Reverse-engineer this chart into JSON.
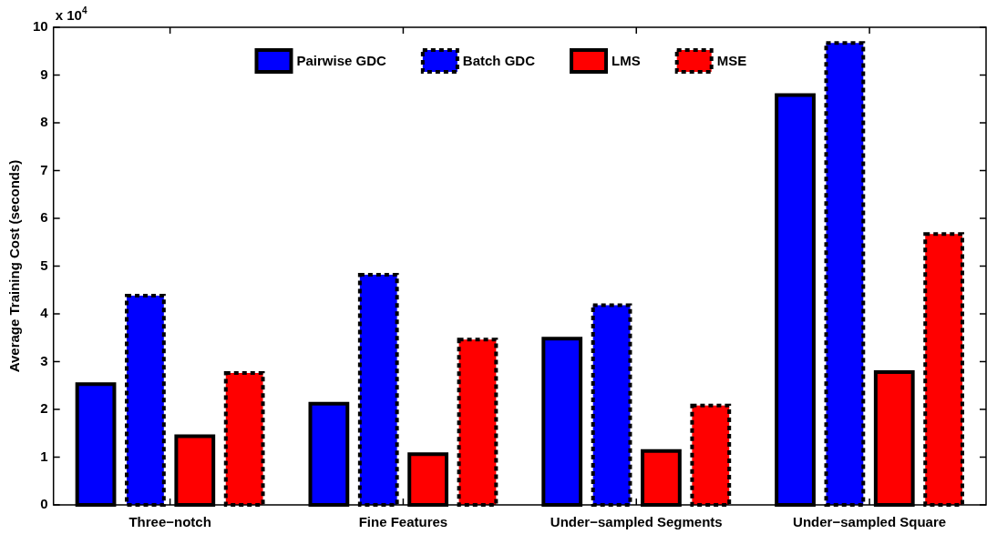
{
  "chart_data": {
    "type": "bar",
    "ylabel": "Average Training Cost (seconds)",
    "annotations": [
      "x 10$^{4}$"
    ],
    "categories": [
      "Three−notch",
      "Fine Features",
      "Under−sampled Segments",
      "Under−sampled Square"
    ],
    "series": [
      {
        "name": "Pairwise GDC",
        "color": "#0000ff",
        "line_style": "solid",
        "values": [
          2.53,
          2.12,
          3.48,
          8.58
        ]
      },
      {
        "name": "Batch GDC",
        "color": "#0000ff",
        "line_style": "dashed",
        "values": [
          4.38,
          4.82,
          4.18,
          9.67
        ]
      },
      {
        "name": "LMS",
        "color": "#ff0000",
        "line_style": "solid",
        "values": [
          1.44,
          1.06,
          1.13,
          2.78
        ]
      },
      {
        "name": "MSE",
        "color": "#ff0000",
        "line_style": "dashed",
        "values": [
          2.76,
          3.46,
          2.08,
          5.67
        ]
      }
    ],
    "ylim": [
      0,
      10
    ],
    "yticks": [
      0,
      1,
      2,
      3,
      4,
      5,
      6,
      7,
      8,
      9,
      10
    ],
    "grid": false,
    "legend": "top"
  }
}
